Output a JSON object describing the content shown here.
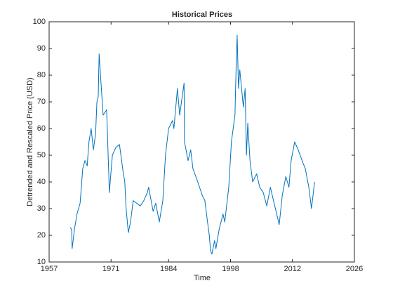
{
  "chart_data": {
    "type": "line",
    "title": "Historical Prices",
    "x_label": "Time",
    "y_label": "Detrended and Rescaled Price (USD)",
    "series": [
      {
        "name": "Price",
        "color": "#0072bd",
        "x": [
          1961.8,
          1962.1,
          1962.2,
          1962.7,
          1963.3,
          1964.0,
          1964.6,
          1965.1,
          1965.6,
          1966.0,
          1966.5,
          1967.0,
          1967.5,
          1967.8,
          1968.1,
          1968.3,
          1969.2,
          1970.0,
          1970.5,
          1970.6,
          1971.3,
          1972.1,
          1972.9,
          1973.7,
          1974.1,
          1974.4,
          1974.9,
          1975.4,
          1976.0,
          1977.6,
          1978.4,
          1979.2,
          1979.5,
          1980.5,
          1981.1,
          1981.9,
          1982.7,
          1983.3,
          1984.0,
          1984.9,
          1985.2,
          1986.0,
          1986.5,
          1987.5,
          1987.6,
          1988.4,
          1989.0,
          1989.5,
          1990.6,
          1991.6,
          1992.2,
          1992.8,
          1993.2,
          1993.5,
          1993.8,
          1994.4,
          1994.7,
          1995.4,
          1996.3,
          1996.7,
          1997.6,
          1998.2,
          1999.0,
          1999.3,
          1999.5,
          1999.8,
          2000.1,
          2000.9,
          2001.3,
          2001.6,
          2001.9,
          2002.4,
          2003.0,
          2003.9,
          2004.6,
          2005.4,
          2006.2,
          2007.0,
          2009.0,
          2009.7,
          2010.5,
          2011.2,
          2011.7,
          2012.5,
          2013.3,
          2014.4,
          2014.9,
          2015.7,
          2016.3,
          2017.0
        ],
        "values": [
          23,
          22,
          15,
          22,
          28,
          32,
          45,
          48,
          46,
          55,
          60,
          52,
          58,
          70,
          72,
          88,
          65,
          67,
          42,
          36,
          50,
          53,
          54,
          44,
          40,
          30,
          21,
          25,
          33,
          31,
          33,
          36,
          38,
          29,
          32,
          25,
          33,
          50,
          60,
          63,
          60,
          75,
          65,
          77,
          55,
          48,
          52,
          45,
          40,
          35,
          33,
          25,
          20,
          14,
          13,
          18,
          15,
          22,
          28,
          25,
          38,
          55,
          65,
          85,
          95,
          75,
          82,
          68,
          75,
          50,
          62,
          48,
          40,
          43,
          38,
          36,
          31,
          38,
          24,
          35,
          42,
          38,
          48,
          55,
          52,
          47,
          45,
          38,
          30,
          40
        ]
      }
    ],
    "xlim": [
      1957,
      2026
    ],
    "xticks": [
      1957,
      1971,
      1984,
      1998,
      2012,
      2026
    ],
    "ylim": [
      10,
      100
    ],
    "yticks": [
      10,
      20,
      30,
      40,
      50,
      60,
      70,
      80,
      90,
      100
    ]
  }
}
